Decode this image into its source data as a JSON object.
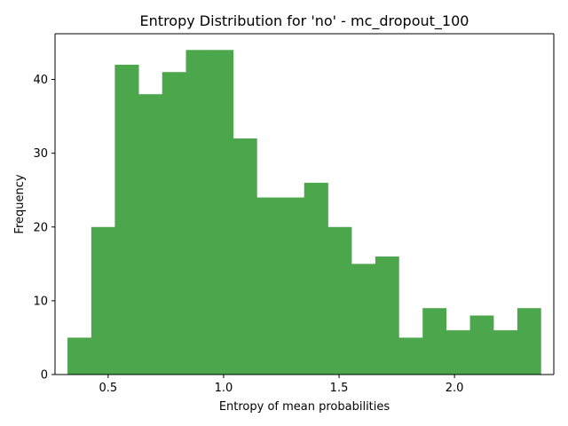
{
  "chart_data": {
    "type": "bar",
    "title": "Entropy Distribution for 'no' - mc_dropout_100",
    "xlabel": "Entropy of mean probabilities",
    "ylabel": "Frequency",
    "bar_color": "#4ca64c",
    "xlim": [
      0.27,
      2.43
    ],
    "ylim": [
      0,
      46.2
    ],
    "xticks": [
      0.5,
      1.0,
      1.5,
      2.0
    ],
    "xtick_labels": [
      "0.5",
      "1.0",
      "1.5",
      "2.0"
    ],
    "yticks": [
      0,
      10,
      20,
      30,
      40
    ],
    "ytick_labels": [
      "0",
      "10",
      "20",
      "30",
      "40"
    ],
    "bin_edges": [
      0.324,
      0.427,
      0.529,
      0.632,
      0.734,
      0.837,
      0.939,
      1.042,
      1.144,
      1.247,
      1.349,
      1.452,
      1.554,
      1.657,
      1.759,
      1.862,
      1.964,
      2.067,
      2.169,
      2.272,
      2.374
    ],
    "counts": [
      5,
      20,
      42,
      38,
      41,
      44,
      44,
      32,
      24,
      24,
      26,
      20,
      15,
      16,
      5,
      9,
      6,
      8,
      6,
      9
    ],
    "grid": false
  }
}
